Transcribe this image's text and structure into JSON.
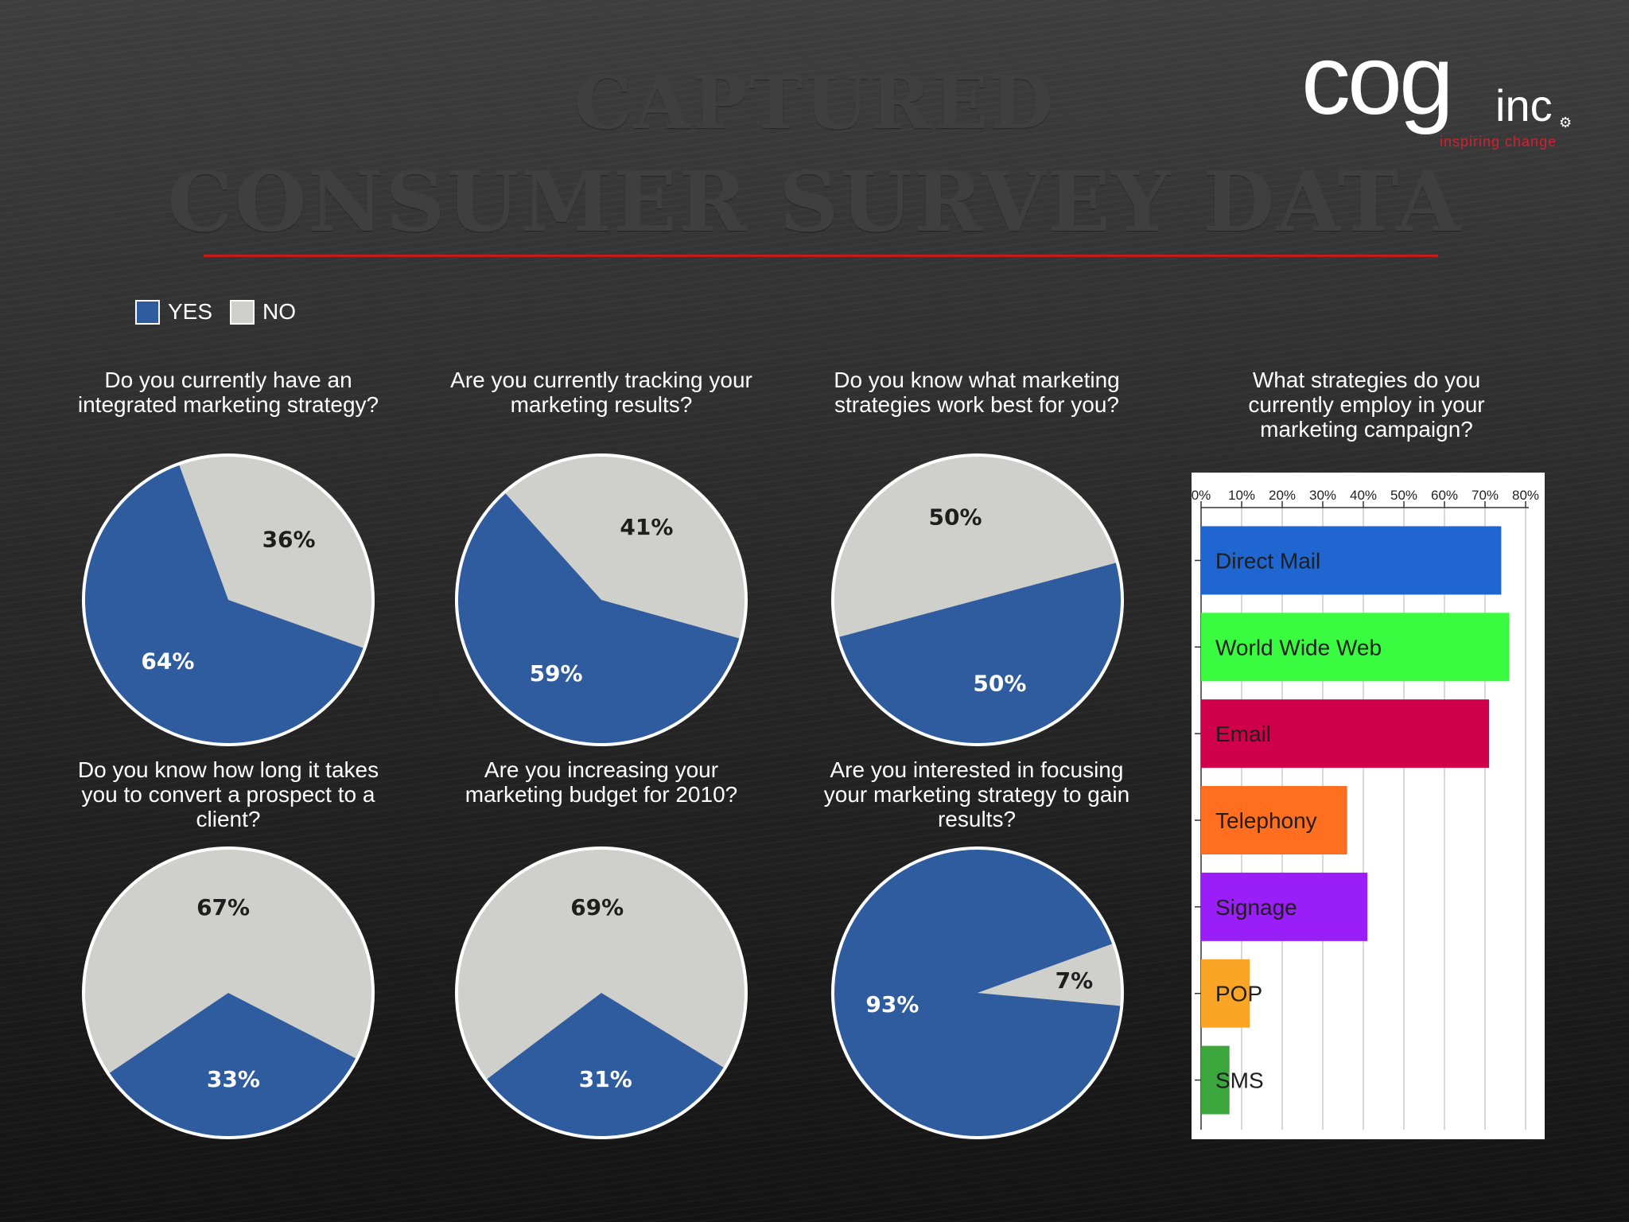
{
  "slide": {
    "title_line1": "CAPTURED",
    "title_line2": "CONSUMER SURVEY DATA"
  },
  "logo": {
    "main": "cog",
    "suffix": "inc",
    "tagline": "inspiring change"
  },
  "legend": {
    "yes_label": "YES",
    "no_label": "NO",
    "yes_color": "#2e5c9e",
    "no_color": "#cfcfcb"
  },
  "chart_data": [
    {
      "type": "pie",
      "title": "Do you currently have an integrated marketing strategy?",
      "labels": [
        "YES",
        "NO"
      ],
      "values": [
        64,
        36
      ],
      "value_labels": [
        "64%",
        "36%"
      ]
    },
    {
      "type": "pie",
      "title": "Are you currently tracking your marketing results?",
      "labels": [
        "YES",
        "NO"
      ],
      "values": [
        59,
        41
      ],
      "value_labels": [
        "59%",
        "41%"
      ]
    },
    {
      "type": "pie",
      "title": "Do you know what marketing strategies work best for you?",
      "labels": [
        "YES",
        "NO"
      ],
      "values": [
        50,
        50
      ],
      "value_labels": [
        "50%",
        "50%"
      ]
    },
    {
      "type": "pie",
      "title": "Do you know how long it takes you to convert a prospect to a client?",
      "labels": [
        "YES",
        "NO"
      ],
      "values": [
        33,
        67
      ],
      "value_labels": [
        "33%",
        "67%"
      ]
    },
    {
      "type": "pie",
      "title": "Are you increasing your marketing budget for 2010?",
      "labels": [
        "YES",
        "NO"
      ],
      "values": [
        31,
        69
      ],
      "value_labels": [
        "31%",
        "69%"
      ]
    },
    {
      "type": "pie",
      "title": "Are you interested in focusing your marketing strategy to gain results?",
      "labels": [
        "YES",
        "NO"
      ],
      "values": [
        93,
        7
      ],
      "value_labels": [
        "93%",
        "7%"
      ]
    },
    {
      "type": "bar",
      "orientation": "horizontal",
      "title": "What strategies do you currently employ in your marketing campaign?",
      "categories": [
        "Direct Mail",
        "World Wide Web",
        "Email",
        "Telephony",
        "Signage",
        "POP",
        "SMS"
      ],
      "values": [
        74,
        76,
        71,
        36,
        41,
        12,
        7
      ],
      "colors": [
        "#1f66d1",
        "#39fb3f",
        "#d1004b",
        "#ff6f1f",
        "#9a1ef7",
        "#fba526",
        "#3aa63c"
      ],
      "xlim": [
        0,
        80
      ],
      "xticks": [
        "0%",
        "10%",
        "20%",
        "30%",
        "40%",
        "50%",
        "60%",
        "70%",
        "80%"
      ],
      "grid": true
    }
  ]
}
